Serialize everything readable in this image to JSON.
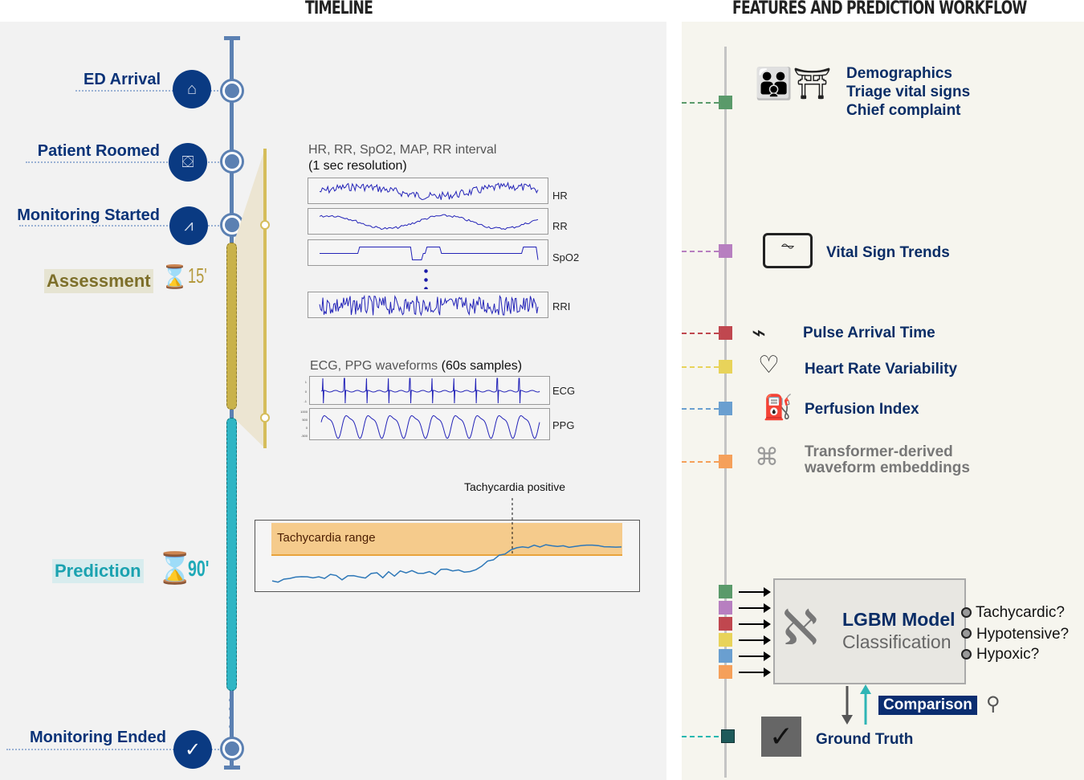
{
  "titles": {
    "timeline": "TIMELINE",
    "workflow": "FEATURES AND PREDICTION WORKFLOW"
  },
  "events": [
    {
      "label": "ED Arrival",
      "icon": "hospital-icon"
    },
    {
      "label": "Patient Roomed",
      "icon": "bed-icon"
    },
    {
      "label": "Monitoring Started",
      "icon": "monitor-icon"
    },
    {
      "label": "Monitoring Ended",
      "icon": "check-icon"
    }
  ],
  "phases": {
    "assessment": {
      "label": "Assessment",
      "duration": "15'",
      "color": "#c9b24a"
    },
    "prediction": {
      "label": "Prediction",
      "duration": "90'",
      "color": "#2fb5c4"
    }
  },
  "signals": {
    "title_line1": "HR, RR, SpO2, MAP, RR interval",
    "title_line2": "(1 sec resolution)",
    "channels": [
      "HR",
      "RR",
      "SpO2",
      "RRI"
    ],
    "waveform_title": "ECG, PPG waveforms",
    "waveform_title_suffix": "(60s samples)",
    "waveforms": [
      "ECG",
      "PPG"
    ],
    "ecg_ticks": [
      "1",
      "0",
      "-1"
    ],
    "ppg_ticks": [
      "1000",
      "500",
      "0",
      "-500"
    ]
  },
  "tachy": {
    "annotation": "Tachycardia positive",
    "range_label": "Tachycardia range"
  },
  "features": [
    {
      "lines": [
        "Demographics",
        "Triage vital signs",
        "Chief complaint"
      ],
      "color": "#5a9a6a",
      "icon": "people-bed-icon"
    },
    {
      "lines": [
        "Vital Sign Trends"
      ],
      "color": "#b77fc0",
      "icon": "monitor-icon"
    },
    {
      "lines": [
        "Pulse Arrival Time"
      ],
      "color": "#c0474f",
      "icon": "pulse-icon"
    },
    {
      "lines": [
        "Heart Rate Variability"
      ],
      "color": "#e8d35a",
      "icon": "heart-icon"
    },
    {
      "lines": [
        "Perfusion Index"
      ],
      "color": "#6a9fd0",
      "icon": "iv-bag-icon"
    },
    {
      "lines": [
        "Transformer-derived",
        "waveform embeddings"
      ],
      "color": "#f5a05a",
      "icon": "transformer-icon"
    }
  ],
  "model": {
    "title": "LGBM Model",
    "subtitle": "Classification",
    "outputs": [
      "Tachycardic?",
      "Hypotensive?",
      "Hypoxic?"
    ]
  },
  "comparison": "Comparison",
  "ground_truth": {
    "label": "Ground Truth",
    "color": "#1e5a5a"
  }
}
